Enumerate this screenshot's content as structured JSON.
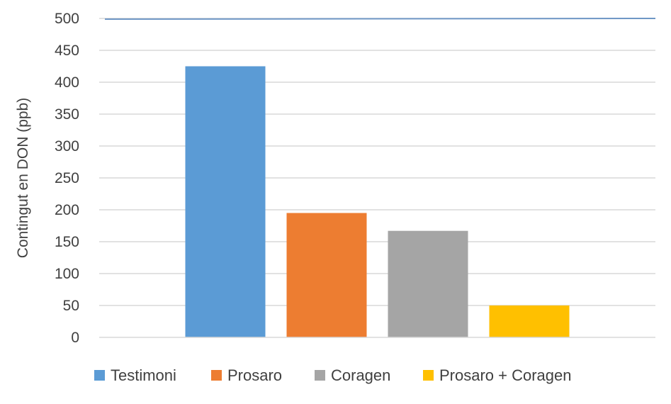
{
  "chart_data": {
    "type": "bar",
    "title": "",
    "xlabel": "",
    "ylabel": "Contingut en DON (ppb)",
    "categories": [
      "Testimoni",
      "Prosaro",
      "Coragen",
      "Prosaro + Coragen"
    ],
    "values": [
      425,
      195,
      167,
      50
    ],
    "colors": [
      "#5B9BD5",
      "#ED7D31",
      "#A5A5A5",
      "#FFC000"
    ],
    "ylim": [
      0,
      500
    ],
    "yticks": [
      0,
      50,
      100,
      150,
      200,
      250,
      300,
      350,
      400,
      450,
      500
    ],
    "ytick_labels": [
      "0",
      "50",
      "100",
      "150",
      "200",
      "250",
      "300",
      "350",
      "400",
      "450",
      "500"
    ],
    "reference_line": {
      "value": 500,
      "color": "#6F97C6"
    },
    "legend_position": "bottom",
    "grid": true
  }
}
